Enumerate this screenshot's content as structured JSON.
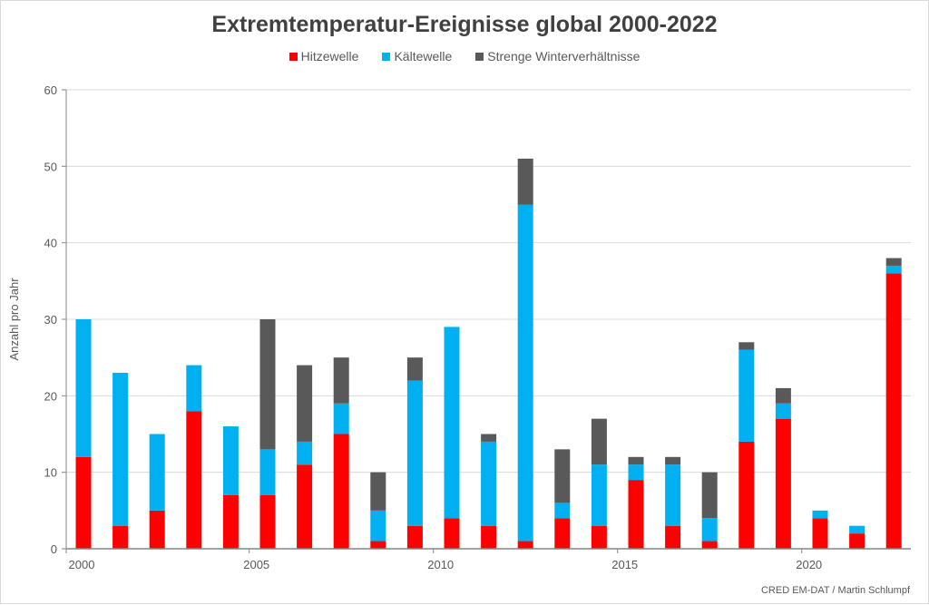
{
  "chart_data": {
    "type": "bar",
    "stacked": true,
    "title": "Extremtemperatur-Ereignisse global 2000-2022",
    "xlabel": "",
    "ylabel": "Anzahl pro Jahr",
    "ylim": [
      0,
      60
    ],
    "yticks": [
      0,
      10,
      20,
      30,
      40,
      50,
      60
    ],
    "xtick_labels": [
      "2000",
      "2005",
      "2010",
      "2015",
      "2020"
    ],
    "grid": true,
    "legend_position": "top-center",
    "categories": [
      "2000",
      "2001",
      "2002",
      "2003",
      "2004",
      "2005",
      "2006",
      "2007",
      "2008",
      "2009",
      "2010",
      "2011",
      "2012",
      "2013",
      "2014",
      "2015",
      "2016",
      "2017",
      "2018",
      "2019",
      "2020",
      "2021",
      "2022"
    ],
    "series": [
      {
        "name": "Hitzewelle",
        "color": "#ff0000",
        "values": [
          12,
          3,
          5,
          18,
          7,
          7,
          11,
          15,
          1,
          3,
          4,
          3,
          1,
          4,
          3,
          9,
          3,
          1,
          14,
          17,
          4,
          2,
          36
        ]
      },
      {
        "name": "Kältewelle",
        "color": "#00b0f0",
        "values": [
          18,
          20,
          10,
          6,
          9,
          6,
          3,
          4,
          4,
          19,
          25,
          11,
          44,
          2,
          8,
          2,
          8,
          3,
          12,
          2,
          1,
          1,
          1
        ]
      },
      {
        "name": "Strenge Winterverhältnisse",
        "color": "#595959",
        "values": [
          0,
          0,
          0,
          0,
          0,
          17,
          10,
          6,
          5,
          3,
          0,
          1,
          6,
          7,
          6,
          1,
          1,
          6,
          1,
          2,
          0,
          0,
          1
        ]
      }
    ]
  },
  "credit": "CRED EM-DAT / Martin Schlumpf"
}
